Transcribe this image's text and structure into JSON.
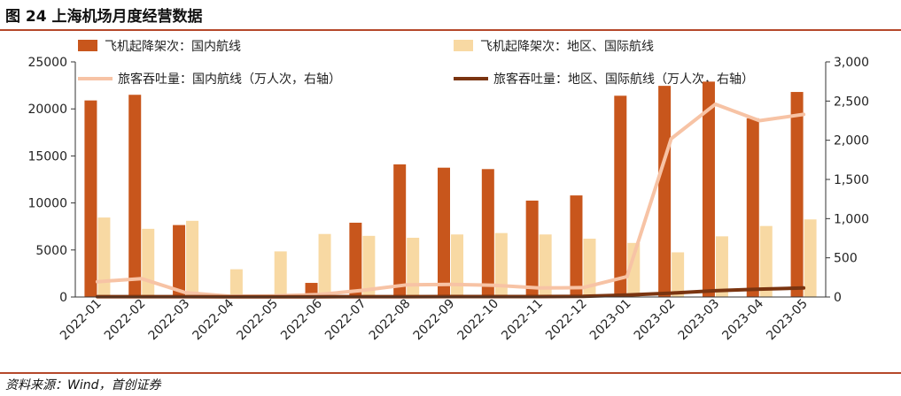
{
  "figure": {
    "title": "图 24 上海机场月度经营数据",
    "source": "资料来源：Wind，首创证券",
    "rule_color": "#b5482a"
  },
  "chart_data": {
    "type": "bar",
    "categories": [
      "2022-01",
      "2022-02",
      "2022-03",
      "2022-04",
      "2022-05",
      "2022-06",
      "2022-07",
      "2022-08",
      "2022-09",
      "2022-10",
      "2022-11",
      "2022-12",
      "2023-01",
      "2023-02",
      "2023-03",
      "2023-04",
      "2023-05"
    ],
    "left_axis": {
      "ylim": [
        0,
        25000
      ],
      "ticks": [
        0,
        5000,
        10000,
        15000,
        20000,
        25000
      ],
      "tick_labels": [
        "0",
        "5000",
        "10000",
        "15000",
        "20000",
        "25000"
      ]
    },
    "right_axis": {
      "ylim": [
        0,
        3000
      ],
      "ticks": [
        0,
        500,
        1000,
        1500,
        2000,
        2500,
        3000
      ],
      "tick_labels": [
        "0",
        "500",
        "1,000",
        "1,500",
        "2,000",
        "2,500",
        "3,000"
      ]
    },
    "series": [
      {
        "name": "飞机起降架次：国内航线",
        "kind": "bar",
        "axis": "left",
        "color": "#c8561c",
        "values": [
          20900,
          21500,
          7650,
          0,
          0,
          1500,
          7900,
          14100,
          13750,
          13600,
          10250,
          10800,
          21400,
          22450,
          22900,
          19000,
          21800
        ]
      },
      {
        "name": "飞机起降架次：地区、国际航线",
        "kind": "bar",
        "axis": "left",
        "color": "#f8d9a3",
        "values": [
          8450,
          7250,
          8100,
          2950,
          4850,
          6700,
          6500,
          6300,
          6650,
          6800,
          6650,
          6200,
          5750,
          4750,
          6450,
          7550,
          8250
        ]
      },
      {
        "name": "旅客吞吐量：国内航线（万人次，右轴）",
        "kind": "line",
        "axis": "right",
        "color": "#f7c3a5",
        "values": [
          195,
          235,
          55,
          10,
          15,
          30,
          85,
          155,
          160,
          150,
          115,
          120,
          260,
          2020,
          2460,
          2250,
          2330
        ]
      },
      {
        "name": "旅客吞吐量：地区、国际航线（万人次，右轴）",
        "kind": "line",
        "axis": "right",
        "color": "#7a3410",
        "values": [
          5,
          5,
          4,
          2,
          2,
          3,
          4,
          5,
          6,
          6,
          6,
          8,
          25,
          50,
          80,
          100,
          115
        ]
      }
    ],
    "legend": "top"
  }
}
